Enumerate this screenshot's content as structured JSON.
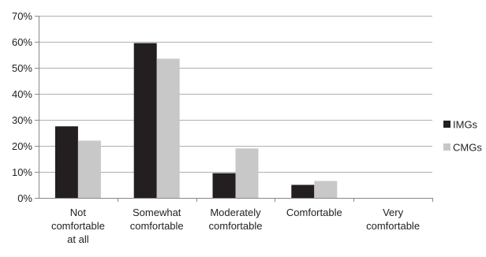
{
  "chart_data": {
    "type": "bar",
    "categories": [
      [
        "Not",
        "comfortable",
        "at all"
      ],
      [
        "Somewhat",
        "comfortable"
      ],
      [
        "Moderately",
        "comfortable"
      ],
      [
        "Comfortable"
      ],
      [
        "Very",
        "comfortable"
      ]
    ],
    "series": [
      {
        "name": "IMGs",
        "values": [
          27.5,
          59.5,
          9.5,
          5,
          0
        ]
      },
      {
        "name": "CMGs",
        "values": [
          22,
          53.5,
          19,
          6.5,
          0
        ]
      }
    ],
    "colors": {
      "IMGs": "#231f20",
      "CMGs": "#c8c8c8"
    },
    "ylim": [
      0,
      70
    ],
    "yticks": [
      "0%",
      "10%",
      "20%",
      "30%",
      "40%",
      "50%",
      "60%",
      "70%"
    ],
    "grid": true,
    "legend": "right",
    "title": "",
    "xlabel": "",
    "ylabel": ""
  }
}
